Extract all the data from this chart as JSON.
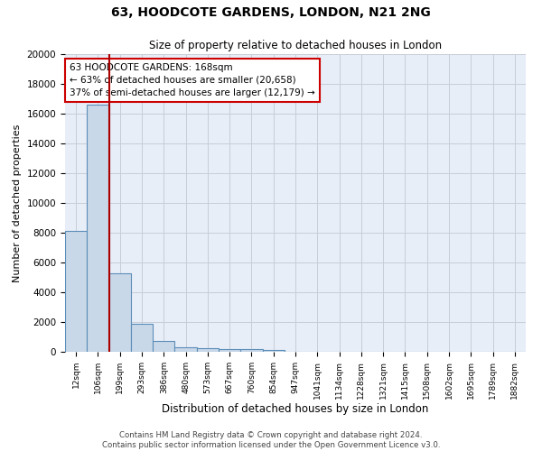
{
  "title_line1": "63, HOODCOTE GARDENS, LONDON, N21 2NG",
  "title_line2": "Size of property relative to detached houses in London",
  "xlabel": "Distribution of detached houses by size in London",
  "ylabel": "Number of detached properties",
  "categories": [
    "12sqm",
    "106sqm",
    "199sqm",
    "293sqm",
    "386sqm",
    "480sqm",
    "573sqm",
    "667sqm",
    "760sqm",
    "854sqm",
    "947sqm",
    "1041sqm",
    "1134sqm",
    "1228sqm",
    "1321sqm",
    "1415sqm",
    "1508sqm",
    "1602sqm",
    "1695sqm",
    "1789sqm",
    "1882sqm"
  ],
  "values": [
    8100,
    16600,
    5300,
    1850,
    700,
    300,
    220,
    200,
    180,
    150,
    0,
    0,
    0,
    0,
    0,
    0,
    0,
    0,
    0,
    0,
    0
  ],
  "bar_color": "#c8d8e8",
  "bar_edge_color": "#5b8db8",
  "bar_edge_width": 0.8,
  "vline_x": 1.5,
  "vline_color": "#aa0000",
  "annotation_text": "63 HOODCOTE GARDENS: 168sqm\n← 63% of detached houses are smaller (20,658)\n37% of semi-detached houses are larger (12,179) →",
  "annotation_box_color": "#ffffff",
  "annotation_box_edge": "#cc0000",
  "ylim": [
    0,
    20000
  ],
  "yticks": [
    0,
    2000,
    4000,
    6000,
    8000,
    10000,
    12000,
    14000,
    16000,
    18000,
    20000
  ],
  "grid_color": "#c8cdd8",
  "background_color": "#e8eef8",
  "footer_text": "Contains HM Land Registry data © Crown copyright and database right 2024.\nContains public sector information licensed under the Open Government Licence v3.0.",
  "fig_width": 6.0,
  "fig_height": 5.0,
  "dpi": 100
}
